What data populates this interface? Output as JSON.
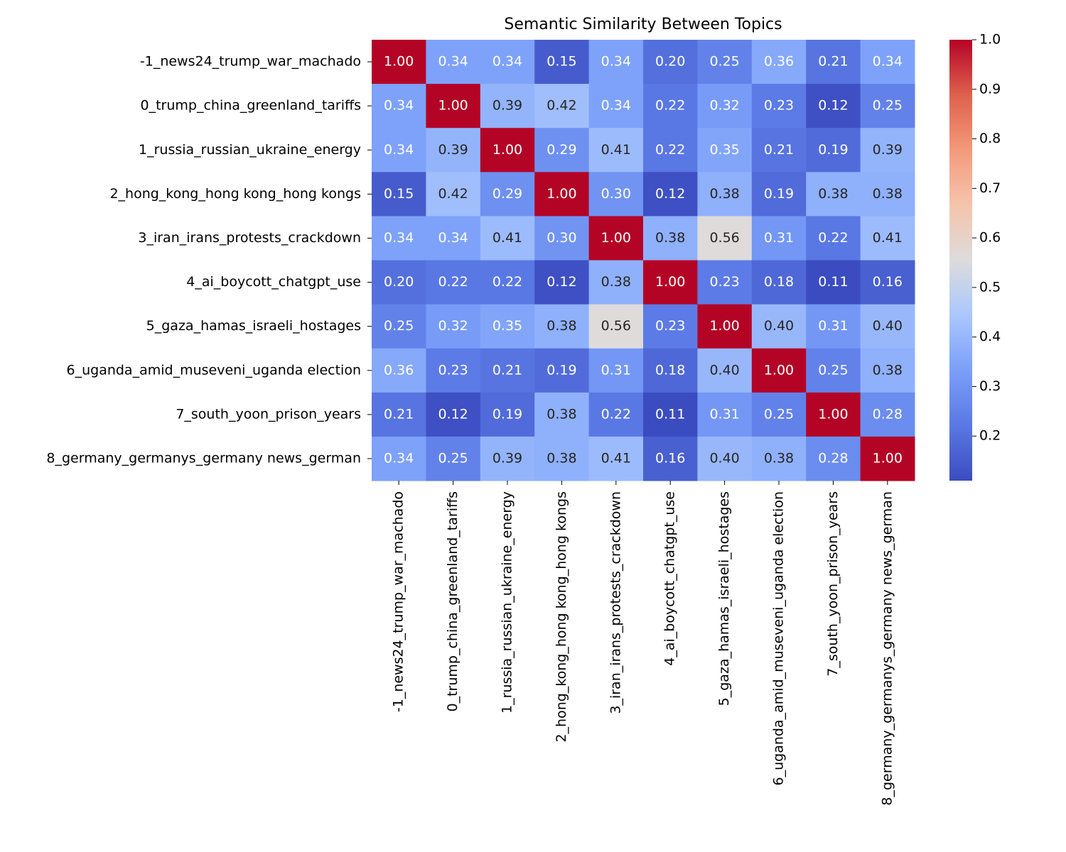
{
  "chart_data": {
    "type": "heatmap",
    "title": "Semantic Similarity Between Topics",
    "categories": [
      "-1_news24_trump_war_machado",
      "0_trump_china_greenland_tariffs",
      "1_russia_russian_ukraine_energy",
      "2_hong_kong_hong kong_hong kongs",
      "3_iran_irans_protests_crackdown",
      "4_ai_boycott_chatgpt_use",
      "5_gaza_hamas_israeli_hostages",
      "6_uganda_amid_museveni_uganda election",
      "7_south_yoon_prison_years",
      "8_germany_germanys_germany news_german"
    ],
    "values": [
      [
        1.0,
        0.34,
        0.34,
        0.15,
        0.34,
        0.2,
        0.25,
        0.36,
        0.21,
        0.34
      ],
      [
        0.34,
        1.0,
        0.39,
        0.42,
        0.34,
        0.22,
        0.32,
        0.23,
        0.12,
        0.25
      ],
      [
        0.34,
        0.39,
        1.0,
        0.29,
        0.41,
        0.22,
        0.35,
        0.21,
        0.19,
        0.39
      ],
      [
        0.15,
        0.42,
        0.29,
        1.0,
        0.3,
        0.12,
        0.38,
        0.19,
        0.38,
        0.38
      ],
      [
        0.34,
        0.34,
        0.41,
        0.3,
        1.0,
        0.38,
        0.56,
        0.31,
        0.22,
        0.41
      ],
      [
        0.2,
        0.22,
        0.22,
        0.12,
        0.38,
        1.0,
        0.23,
        0.18,
        0.11,
        0.16
      ],
      [
        0.25,
        0.32,
        0.35,
        0.38,
        0.56,
        0.23,
        1.0,
        0.4,
        0.31,
        0.4
      ],
      [
        0.36,
        0.23,
        0.21,
        0.19,
        0.31,
        0.18,
        0.4,
        1.0,
        0.25,
        0.38
      ],
      [
        0.21,
        0.12,
        0.19,
        0.38,
        0.22,
        0.11,
        0.31,
        0.25,
        1.0,
        0.28
      ],
      [
        0.34,
        0.25,
        0.39,
        0.38,
        0.41,
        0.16,
        0.4,
        0.38,
        0.28,
        1.0
      ]
    ],
    "value_labels": [
      [
        "1.00",
        "0.34",
        "0.34",
        "0.15",
        "0.34",
        "0.20",
        "0.25",
        "0.36",
        "0.21",
        "0.34"
      ],
      [
        "0.34",
        "1.00",
        "0.39",
        "0.42",
        "0.34",
        "0.22",
        "0.32",
        "0.23",
        "0.12",
        "0.25"
      ],
      [
        "0.34",
        "0.39",
        "1.00",
        "0.29",
        "0.41",
        "0.22",
        "0.35",
        "0.21",
        "0.19",
        "0.39"
      ],
      [
        "0.15",
        "0.42",
        "0.29",
        "1.00",
        "0.30",
        "0.12",
        "0.38",
        "0.19",
        "0.38",
        "0.38"
      ],
      [
        "0.34",
        "0.34",
        "0.41",
        "0.30",
        "1.00",
        "0.38",
        "0.56",
        "0.31",
        "0.22",
        "0.41"
      ],
      [
        "0.20",
        "0.22",
        "0.22",
        "0.12",
        "0.38",
        "1.00",
        "0.23",
        "0.18",
        "0.11",
        "0.16"
      ],
      [
        "0.25",
        "0.32",
        "0.35",
        "0.38",
        "0.56",
        "0.23",
        "1.00",
        "0.40",
        "0.31",
        "0.40"
      ],
      [
        "0.36",
        "0.23",
        "0.21",
        "0.19",
        "0.31",
        "0.18",
        "0.40",
        "1.00",
        "0.25",
        "0.38"
      ],
      [
        "0.21",
        "0.12",
        "0.19",
        "0.38",
        "0.22",
        "0.11",
        "0.31",
        "0.25",
        "1.00",
        "0.28"
      ],
      [
        "0.34",
        "0.25",
        "0.39",
        "0.38",
        "0.41",
        "0.16",
        "0.40",
        "0.38",
        "0.28",
        "1.00"
      ]
    ],
    "colormap": "coolwarm",
    "zlim": [
      0.11,
      1.0
    ],
    "zticks": [
      0.2,
      0.3,
      0.4,
      0.5,
      0.6,
      0.7,
      0.8,
      0.9,
      {
        "value": 1,
        "label": "1.0"
      }
    ]
  }
}
